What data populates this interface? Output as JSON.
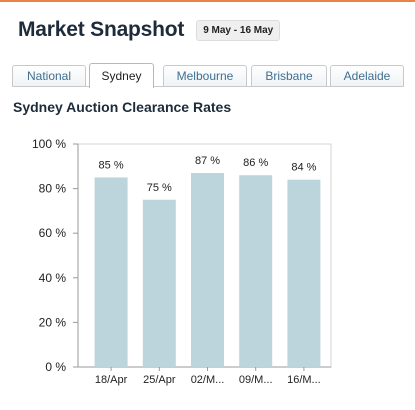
{
  "header": {
    "title": "Market Snapshot",
    "date_range": "9 May - 16 May"
  },
  "tabs": [
    {
      "label": "National",
      "active": false
    },
    {
      "label": "Sydney",
      "active": true
    },
    {
      "label": "Melbourne",
      "active": false
    },
    {
      "label": "Brisbane",
      "active": false
    },
    {
      "label": "Adelaide",
      "active": false
    }
  ],
  "colors": {
    "accent_rule": "#e8844a",
    "bar": "#bcd5dd",
    "tab_text": "#3f6f91"
  },
  "chart_data": {
    "type": "bar",
    "title": "Sydney Auction Clearance Rates",
    "categories": [
      "18/Apr",
      "25/Apr",
      "02/M...",
      "09/M...",
      "16/M..."
    ],
    "values": [
      85,
      75,
      87,
      86,
      84
    ],
    "data_labels": [
      "85 %",
      "75 %",
      "87 %",
      "86 %",
      "84 %"
    ],
    "ylim": [
      0,
      100
    ],
    "yticks": [
      {
        "value": 0,
        "label": "0 %"
      },
      {
        "value": 20,
        "label": "20 %"
      },
      {
        "value": 40,
        "label": "40 %"
      },
      {
        "value": 60,
        "label": "60 %"
      },
      {
        "value": 80,
        "label": "80 %"
      },
      {
        "value": 100,
        "label": "100 %"
      }
    ],
    "grid": false,
    "legend": "none"
  }
}
